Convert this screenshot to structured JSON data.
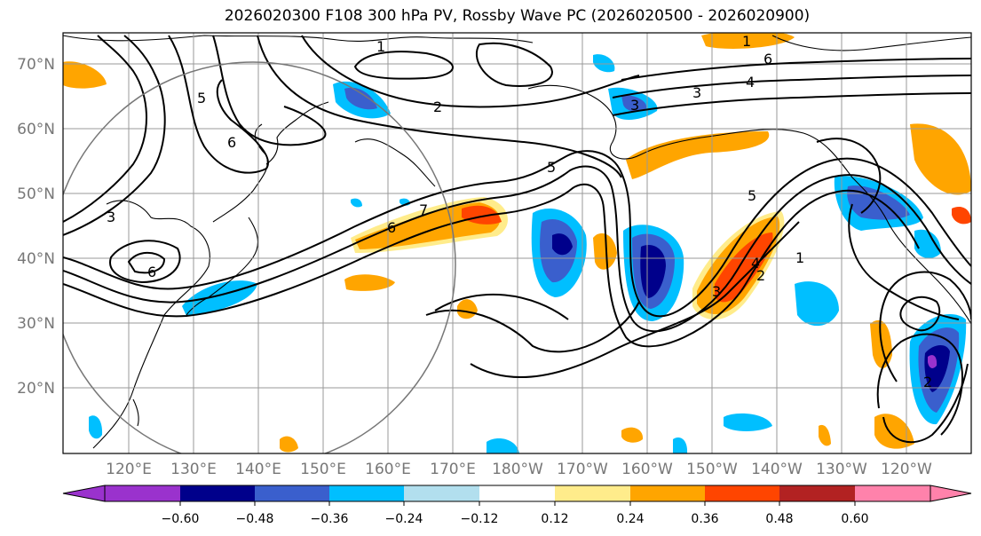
{
  "title": "2026020300 F108 300 hPa PV, Rossby Wave PC (2026020500 - 2026020900)",
  "map": {
    "lat_labels": [
      "70°N",
      "60°N",
      "50°N",
      "40°N",
      "30°N",
      "20°N"
    ],
    "lon_labels": [
      "120°E",
      "130°E",
      "140°E",
      "150°E",
      "160°E",
      "170°E",
      "180°W",
      "170°W",
      "160°W",
      "150°W",
      "140°W",
      "130°W",
      "120°W"
    ],
    "contour_labels": [
      "1",
      "1",
      "2",
      "3",
      "3",
      "4",
      "5",
      "5",
      "6",
      "6",
      "6",
      "7",
      "5",
      "4",
      "3",
      "2",
      "1",
      "3",
      "6",
      "2"
    ],
    "colors": {
      "coast": "#000000",
      "grid": "#999999",
      "contour": "#000000",
      "circle": "#777777"
    }
  },
  "colorbar": {
    "tick_labels": [
      "−0.60",
      "−0.48",
      "−0.36",
      "−0.24",
      "−0.12",
      "0.12",
      "0.24",
      "0.36",
      "0.48",
      "0.60"
    ],
    "colors": [
      "#9a32cd",
      "#00008b",
      "#3a5fcd",
      "#00bfff",
      "#b2dfee",
      "#ffffff",
      "#ffec8b",
      "#ffa500",
      "#ff4500",
      "#b22222",
      "#ff82ab"
    ]
  }
}
